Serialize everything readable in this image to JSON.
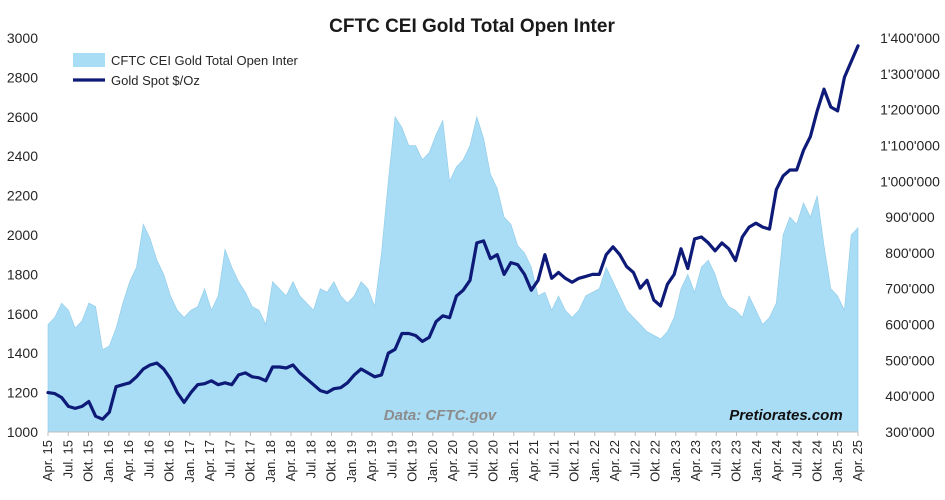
{
  "chart_data": {
    "type": "area",
    "title": "CFTC CEI Gold Total Open Inter",
    "xlabel": "",
    "ylabel_left": "",
    "ylabel_right": "",
    "x_ticks": [
      "Apr. 15",
      "Jul. 15",
      "Okt. 15",
      "Jan. 16",
      "Apr. 16",
      "Jul. 16",
      "Okt. 16",
      "Jan. 17",
      "Apr. 17",
      "Jul. 17",
      "Okt. 17",
      "Jan. 18",
      "Apr. 18",
      "Jul. 18",
      "Okt. 18",
      "Jan. 19",
      "Apr. 19",
      "Jul. 19",
      "Okt. 19",
      "Jan. 20",
      "Apr. 20",
      "Jul. 20",
      "Okt. 20",
      "Jan. 21",
      "Apr. 21",
      "Jul. 21",
      "Okt. 21",
      "Jan. 22",
      "Apr. 22",
      "Jul. 22",
      "Okt. 22",
      "Jan. 23",
      "Apr. 23",
      "Jul. 23",
      "Okt. 23",
      "Jan. 24",
      "Apr. 24",
      "Jul. 24",
      "Okt. 24",
      "Jan. 25",
      "Apr. 25"
    ],
    "y_left_ticks": [
      "1000",
      "1200",
      "1400",
      "1600",
      "1800",
      "2000",
      "2200",
      "2400",
      "2600",
      "2800",
      "3000"
    ],
    "y_right_ticks": [
      "300'000",
      "400'000",
      "500'000",
      "600'000",
      "700'000",
      "800'000",
      "900'000",
      "1'000'000",
      "1'100'000",
      "1'200'000",
      "1'300'000",
      "1'400'000"
    ],
    "ylim_left": [
      1000,
      3000
    ],
    "ylim_right": [
      300000,
      1400000
    ],
    "grid": false,
    "legend_position": "top-left",
    "annotations": {
      "source": "Data: CFTC.gov",
      "brand": "Pretiorates.com"
    },
    "series": [
      {
        "name": "CFTC CEI Gold Total Open Inter",
        "axis": "right",
        "style": "area",
        "color": "#a9dcf5",
        "x": [
          "2015-04",
          "2015-05",
          "2015-06",
          "2015-07",
          "2015-08",
          "2015-09",
          "2015-10",
          "2015-11",
          "2015-12",
          "2016-01",
          "2016-02",
          "2016-03",
          "2016-04",
          "2016-05",
          "2016-06",
          "2016-07",
          "2016-08",
          "2016-09",
          "2016-10",
          "2016-11",
          "2016-12",
          "2017-01",
          "2017-02",
          "2017-03",
          "2017-04",
          "2017-05",
          "2017-06",
          "2017-07",
          "2017-08",
          "2017-09",
          "2017-10",
          "2017-11",
          "2017-12",
          "2018-01",
          "2018-02",
          "2018-03",
          "2018-04",
          "2018-05",
          "2018-06",
          "2018-07",
          "2018-08",
          "2018-09",
          "2018-10",
          "2018-11",
          "2018-12",
          "2019-01",
          "2019-02",
          "2019-03",
          "2019-04",
          "2019-05",
          "2019-06",
          "2019-07",
          "2019-08",
          "2019-09",
          "2019-10",
          "2019-11",
          "2019-12",
          "2020-01",
          "2020-02",
          "2020-03",
          "2020-04",
          "2020-05",
          "2020-06",
          "2020-07",
          "2020-08",
          "2020-09",
          "2020-10",
          "2020-11",
          "2020-12",
          "2021-01",
          "2021-02",
          "2021-03",
          "2021-04",
          "2021-05",
          "2021-06",
          "2021-07",
          "2021-08",
          "2021-09",
          "2021-10",
          "2021-11",
          "2021-12",
          "2022-01",
          "2022-02",
          "2022-03",
          "2022-04",
          "2022-05",
          "2022-06",
          "2022-07",
          "2022-08",
          "2022-09",
          "2022-10",
          "2022-11",
          "2022-12",
          "2023-01",
          "2023-02",
          "2023-03",
          "2023-04",
          "2023-05",
          "2023-06",
          "2023-07",
          "2023-08",
          "2023-09",
          "2023-10",
          "2023-11",
          "2023-12",
          "2024-01",
          "2024-02",
          "2024-03",
          "2024-04",
          "2024-05",
          "2024-06",
          "2024-07",
          "2024-08",
          "2024-09",
          "2024-10",
          "2024-11",
          "2024-12",
          "2025-01",
          "2025-02",
          "2025-03"
        ],
        "values": [
          600000,
          620000,
          660000,
          640000,
          590000,
          610000,
          660000,
          650000,
          530000,
          540000,
          590000,
          660000,
          720000,
          760000,
          880000,
          840000,
          780000,
          740000,
          680000,
          640000,
          620000,
          640000,
          650000,
          700000,
          640000,
          680000,
          810000,
          760000,
          720000,
          690000,
          650000,
          640000,
          600000,
          720000,
          700000,
          680000,
          720000,
          680000,
          660000,
          640000,
          700000,
          690000,
          720000,
          680000,
          660000,
          680000,
          720000,
          700000,
          650000,
          800000,
          1000000,
          1180000,
          1150000,
          1100000,
          1100000,
          1060000,
          1080000,
          1130000,
          1170000,
          1000000,
          1040000,
          1060000,
          1100000,
          1180000,
          1120000,
          1020000,
          980000,
          900000,
          880000,
          820000,
          800000,
          760000,
          680000,
          690000,
          640000,
          680000,
          640000,
          620000,
          640000,
          680000,
          690000,
          700000,
          760000,
          720000,
          680000,
          640000,
          620000,
          600000,
          580000,
          570000,
          560000,
          580000,
          620000,
          700000,
          740000,
          690000,
          760000,
          780000,
          740000,
          680000,
          650000,
          640000,
          620000,
          680000,
          640000,
          600000,
          620000,
          660000,
          850000,
          900000,
          880000,
          940000,
          900000,
          960000,
          820000,
          700000,
          680000,
          640000,
          850000,
          870000
        ]
      },
      {
        "name": "Gold Spot $/Oz",
        "axis": "left",
        "style": "line",
        "color": "#0d1a78",
        "x": [
          "2015-04",
          "2015-05",
          "2015-06",
          "2015-07",
          "2015-08",
          "2015-09",
          "2015-10",
          "2015-11",
          "2015-12",
          "2016-01",
          "2016-02",
          "2016-03",
          "2016-04",
          "2016-05",
          "2016-06",
          "2016-07",
          "2016-08",
          "2016-09",
          "2016-10",
          "2016-11",
          "2016-12",
          "2017-01",
          "2017-02",
          "2017-03",
          "2017-04",
          "2017-05",
          "2017-06",
          "2017-07",
          "2017-08",
          "2017-09",
          "2017-10",
          "2017-11",
          "2017-12",
          "2018-01",
          "2018-02",
          "2018-03",
          "2018-04",
          "2018-05",
          "2018-06",
          "2018-07",
          "2018-08",
          "2018-09",
          "2018-10",
          "2018-11",
          "2018-12",
          "2019-01",
          "2019-02",
          "2019-03",
          "2019-04",
          "2019-05",
          "2019-06",
          "2019-07",
          "2019-08",
          "2019-09",
          "2019-10",
          "2019-11",
          "2019-12",
          "2020-01",
          "2020-02",
          "2020-03",
          "2020-04",
          "2020-05",
          "2020-06",
          "2020-07",
          "2020-08",
          "2020-09",
          "2020-10",
          "2020-11",
          "2020-12",
          "2021-01",
          "2021-02",
          "2021-03",
          "2021-04",
          "2021-05",
          "2021-06",
          "2021-07",
          "2021-08",
          "2021-09",
          "2021-10",
          "2021-11",
          "2021-12",
          "2022-01",
          "2022-02",
          "2022-03",
          "2022-04",
          "2022-05",
          "2022-06",
          "2022-07",
          "2022-08",
          "2022-09",
          "2022-10",
          "2022-11",
          "2022-12",
          "2023-01",
          "2023-02",
          "2023-03",
          "2023-04",
          "2023-05",
          "2023-06",
          "2023-07",
          "2023-08",
          "2023-09",
          "2023-10",
          "2023-11",
          "2023-12",
          "2024-01",
          "2024-02",
          "2024-03",
          "2024-04",
          "2024-05",
          "2024-06",
          "2024-07",
          "2024-08",
          "2024-09",
          "2024-10",
          "2024-11",
          "2024-12",
          "2025-01",
          "2025-02",
          "2025-03"
        ],
        "values": [
          1200,
          1195,
          1175,
          1130,
          1120,
          1130,
          1155,
          1080,
          1065,
          1100,
          1230,
          1240,
          1250,
          1280,
          1320,
          1340,
          1350,
          1320,
          1270,
          1200,
          1150,
          1200,
          1240,
          1245,
          1260,
          1240,
          1250,
          1240,
          1290,
          1300,
          1280,
          1275,
          1260,
          1330,
          1330,
          1325,
          1340,
          1300,
          1270,
          1240,
          1210,
          1200,
          1220,
          1225,
          1250,
          1290,
          1320,
          1300,
          1280,
          1290,
          1400,
          1420,
          1500,
          1500,
          1490,
          1460,
          1480,
          1560,
          1590,
          1580,
          1690,
          1720,
          1770,
          1960,
          1970,
          1880,
          1900,
          1800,
          1860,
          1850,
          1800,
          1720,
          1770,
          1900,
          1780,
          1810,
          1780,
          1760,
          1780,
          1790,
          1800,
          1800,
          1900,
          1940,
          1900,
          1840,
          1810,
          1730,
          1770,
          1670,
          1640,
          1750,
          1800,
          1930,
          1830,
          1980,
          1990,
          1960,
          1920,
          1960,
          1930,
          1870,
          1990,
          2040,
          2060,
          2040,
          2030,
          2230,
          2300,
          2330,
          2330,
          2430,
          2500,
          2630,
          2740,
          2650,
          2630,
          2800,
          2880,
          2960
        ]
      }
    ]
  }
}
